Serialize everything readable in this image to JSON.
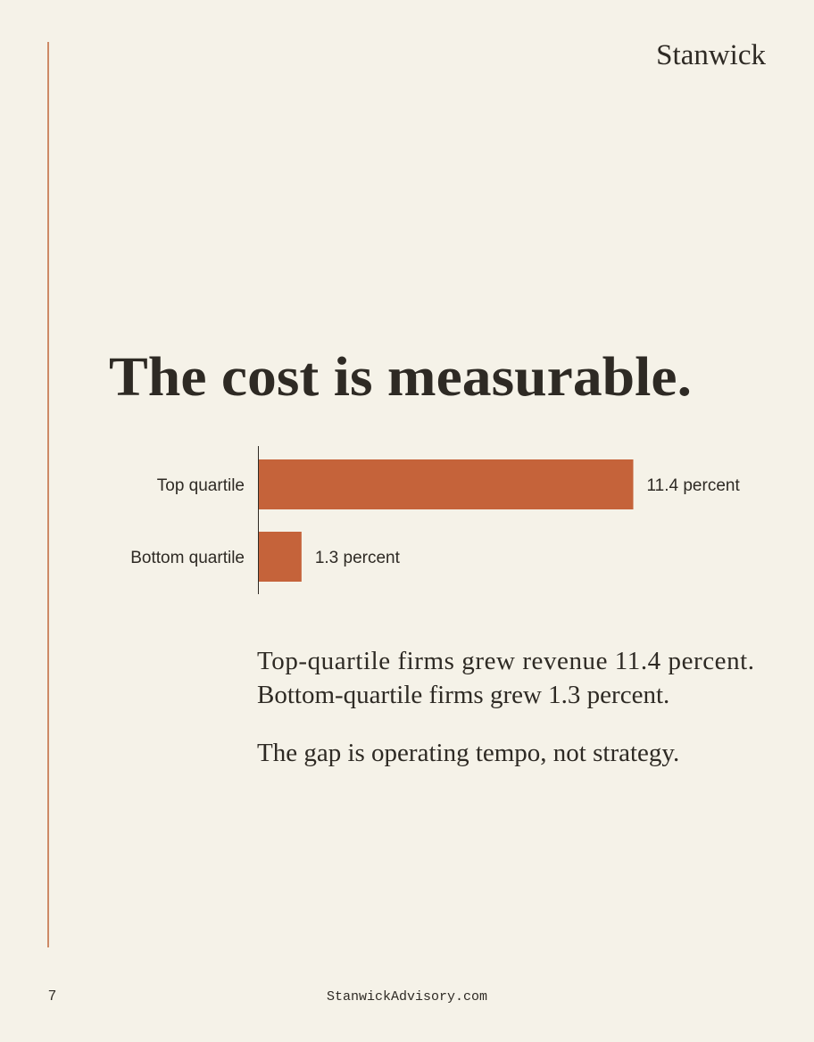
{
  "brand": "Stanwick",
  "heading": "The cost is measurable.",
  "chart_data": {
    "type": "bar",
    "orientation": "horizontal",
    "color": "#c5633a",
    "categories": [
      "Top quartile",
      "Bottom quartile"
    ],
    "values": [
      11.4,
      1.3
    ],
    "value_labels": [
      "11.4 percent",
      "1.3 percent"
    ]
  },
  "body": {
    "paragraphs": [
      [
        "Top-quartile firms grew revenue 11.4 percent.",
        "Bottom-quartile firms grew 1.3 percent."
      ],
      [
        "The gap is operating tempo, not strategy."
      ]
    ]
  },
  "footer": {
    "page_number": "7",
    "url": "StanwickAdvisory.com"
  }
}
